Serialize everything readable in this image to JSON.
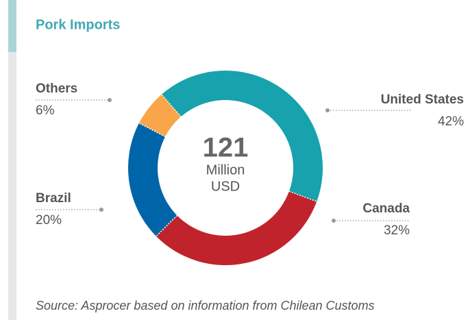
{
  "chart_data": {
    "type": "donut",
    "title": "Pork Imports",
    "categories": [
      "United States",
      "Canada",
      "Brazil",
      "Others"
    ],
    "values": [
      42,
      32,
      20,
      6
    ],
    "value_labels": [
      "42%",
      "32%",
      "20%",
      "6%"
    ],
    "colors": [
      "#17a2ad",
      "#c0232c",
      "#0065a8",
      "#f9a64a"
    ],
    "center_value": 121,
    "center_unit_lines": [
      "Million",
      "USD"
    ],
    "source": "Source: Asprocer based on information from Chilean Customs"
  }
}
